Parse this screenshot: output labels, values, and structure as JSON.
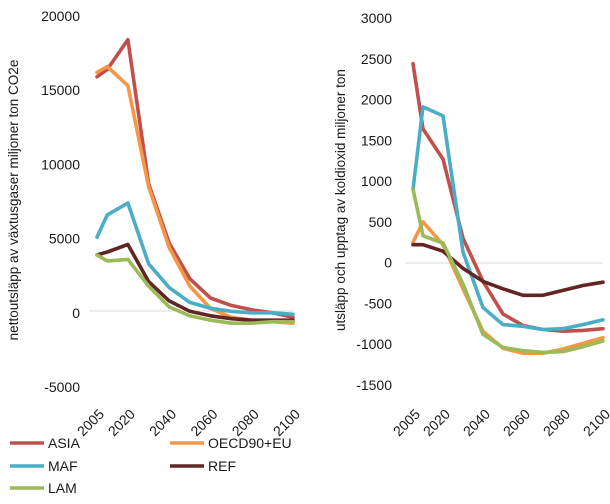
{
  "legend": [
    {
      "name": "ASIA",
      "color": "#c0504d"
    },
    {
      "name": "OECD90+EU",
      "color": "#f79646"
    },
    {
      "name": "MAF",
      "color": "#4bacc6"
    },
    {
      "name": "REF",
      "color": "#632523"
    },
    {
      "name": "LAM",
      "color": "#9bbb59"
    }
  ],
  "chart_data": [
    {
      "type": "line",
      "title": "",
      "xlabel": "",
      "ylabel": "nettoutsläpp av växtusgaser miljoner ton CO2e",
      "x": [
        2005,
        2010,
        2020,
        2030,
        2040,
        2050,
        2060,
        2070,
        2080,
        2090,
        2100
      ],
      "x_tick_labels": [
        "2005",
        "2020",
        "2040",
        "2060",
        "2080",
        "2100"
      ],
      "xlim": [
        2005,
        2100
      ],
      "ylim": [
        -5000,
        20000
      ],
      "y_ticks": [
        -5000,
        0,
        5000,
        10000,
        15000,
        20000
      ],
      "grid": false,
      "series": [
        {
          "name": "ASIA",
          "color": "#c0504d",
          "values": [
            15900,
            16400,
            18400,
            8700,
            4700,
            2300,
            1000,
            500,
            200,
            0,
            -300
          ]
        },
        {
          "name": "OECD90+EU",
          "color": "#f79646",
          "values": [
            16200,
            16600,
            15300,
            8500,
            4400,
            1800,
            300,
            -300,
            -500,
            -600,
            -700
          ]
        },
        {
          "name": "MAF",
          "color": "#4bacc6",
          "values": [
            5100,
            6600,
            7400,
            3300,
            1700,
            700,
            300,
            100,
            0,
            0,
            -100
          ]
        },
        {
          "name": "REF",
          "color": "#632523",
          "values": [
            3900,
            4100,
            4600,
            2100,
            800,
            100,
            -200,
            -400,
            -500,
            -500,
            -500
          ]
        },
        {
          "name": "LAM",
          "color": "#9bbb59",
          "values": [
            3900,
            3500,
            3600,
            1800,
            400,
            -200,
            -500,
            -700,
            -700,
            -600,
            -600
          ]
        }
      ]
    },
    {
      "type": "line",
      "title": "",
      "xlabel": "",
      "ylabel": "utsläpp och upptag av koldioxid miljoner ton",
      "x": [
        2005,
        2010,
        2020,
        2030,
        2040,
        2050,
        2060,
        2070,
        2080,
        2090,
        2100
      ],
      "x_tick_labels": [
        "2005",
        "2020",
        "2040",
        "2060",
        "2080",
        "2100"
      ],
      "xlim": [
        2005,
        2100
      ],
      "ylim": [
        -1500,
        3000
      ],
      "y_ticks": [
        -1500,
        -1000,
        -500,
        0,
        500,
        1000,
        1500,
        2000,
        2500,
        3000
      ],
      "grid": false,
      "series": [
        {
          "name": "ASIA",
          "color": "#c0504d",
          "values": [
            2440,
            1640,
            1270,
            300,
            -230,
            -630,
            -770,
            -820,
            -840,
            -830,
            -810
          ]
        },
        {
          "name": "OECD90+EU",
          "color": "#f79646",
          "values": [
            250,
            500,
            220,
            -320,
            -840,
            -1050,
            -1110,
            -1110,
            -1060,
            -990,
            -920
          ]
        },
        {
          "name": "MAF",
          "color": "#4bacc6",
          "values": [
            900,
            1910,
            1800,
            130,
            -550,
            -760,
            -780,
            -820,
            -810,
            -760,
            -700
          ]
        },
        {
          "name": "REF",
          "color": "#632523",
          "values": [
            220,
            220,
            140,
            -70,
            -230,
            -320,
            -400,
            -400,
            -340,
            -280,
            -240
          ]
        },
        {
          "name": "LAM",
          "color": "#9bbb59",
          "values": [
            900,
            330,
            240,
            -260,
            -880,
            -1040,
            -1080,
            -1100,
            -1090,
            -1030,
            -960
          ]
        }
      ]
    }
  ]
}
